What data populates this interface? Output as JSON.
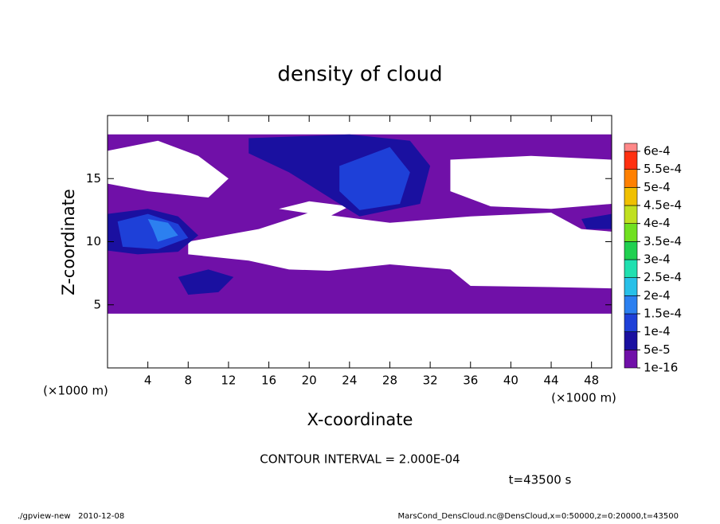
{
  "chart_data": {
    "type": "contour",
    "title": "density of cloud",
    "x_label": "X-coordinate",
    "y_label": "Z-coordinate",
    "x_unit": "(×1000 m)",
    "y_unit": "(×1000 m)",
    "annotation": "CONTOUR INTERVAL = 2.000E-04",
    "time": "t=43500 s",
    "footer_left": "./gpview-new   2010-12-08",
    "footer_right": "MarsCond_DensCloud.nc@DensCloud,x=0:50000,z=0:20000,t=43500",
    "xlim": [
      0,
      50
    ],
    "ylim": [
      0,
      20
    ],
    "xticks": [
      4,
      8,
      12,
      16,
      20,
      24,
      28,
      32,
      36,
      40,
      44,
      48
    ],
    "yticks": [
      5,
      10,
      15
    ],
    "levels": [
      {
        "value": 1e-16,
        "label": "1e-16"
      },
      {
        "value": 5e-05,
        "label": "5e-5"
      },
      {
        "value": 0.0001,
        "label": "1e-4"
      },
      {
        "value": 0.00015,
        "label": "1.5e-4"
      },
      {
        "value": 0.0002,
        "label": "2e-4"
      },
      {
        "value": 0.00025,
        "label": "2.5e-4"
      },
      {
        "value": 0.0003,
        "label": "3e-4"
      },
      {
        "value": 0.00035,
        "label": "3.5e-4"
      },
      {
        "value": 0.0004,
        "label": "4e-4"
      },
      {
        "value": 0.00045,
        "label": "4.5e-4"
      },
      {
        "value": 0.0005,
        "label": "5e-4"
      },
      {
        "value": 0.00055,
        "label": "5.5e-4"
      },
      {
        "value": 0.0006,
        "label": "6e-4"
      }
    ],
    "colors": [
      "#7010a8",
      "#1a10a0",
      "#1e40d8",
      "#2c80f0",
      "#28c0e8",
      "#20e0b0",
      "#20d050",
      "#70e020",
      "#c0e020",
      "#f0c000",
      "#ff8000",
      "#ff3010",
      "#ff8888"
    ],
    "regions": [
      {
        "level": 0,
        "points": [
          [
            0,
            18.5
          ],
          [
            50,
            18.5
          ],
          [
            50,
            4.3
          ],
          [
            0,
            4.3
          ]
        ]
      },
      {
        "level": 1,
        "points": [
          [
            14,
            18.2
          ],
          [
            24,
            18.5
          ],
          [
            30,
            18
          ],
          [
            32,
            16
          ],
          [
            31,
            13
          ],
          [
            25,
            12
          ],
          [
            22,
            13.5
          ],
          [
            18,
            15.5
          ],
          [
            14,
            17
          ]
        ]
      },
      {
        "level": 2,
        "points": [
          [
            23,
            16
          ],
          [
            28,
            17.5
          ],
          [
            30,
            15.5
          ],
          [
            29,
            13
          ],
          [
            25,
            12.5
          ],
          [
            23,
            14
          ]
        ]
      },
      {
        "level": 1,
        "points": [
          [
            0,
            12.2
          ],
          [
            4,
            12.6
          ],
          [
            7,
            12
          ],
          [
            9,
            10.5
          ],
          [
            7,
            9.2
          ],
          [
            3,
            9
          ],
          [
            0,
            9.3
          ]
        ]
      },
      {
        "level": 2,
        "points": [
          [
            1,
            11.6
          ],
          [
            4,
            12.2
          ],
          [
            7,
            11.4
          ],
          [
            8,
            10.3
          ],
          [
            5,
            9.4
          ],
          [
            1.5,
            9.6
          ]
        ]
      },
      {
        "level": 3,
        "points": [
          [
            4,
            11.8
          ],
          [
            6,
            11.5
          ],
          [
            7,
            10.5
          ],
          [
            5,
            10
          ],
          [
            4.5,
            11
          ]
        ]
      },
      {
        "level": 1,
        "points": [
          [
            7,
            7.2
          ],
          [
            10,
            7.8
          ],
          [
            12.5,
            7.2
          ],
          [
            11,
            6
          ],
          [
            8,
            5.8
          ]
        ]
      },
      {
        "level": 1,
        "points": [
          [
            47,
            11.8
          ],
          [
            50,
            12.2
          ],
          [
            50,
            11
          ],
          [
            47.5,
            11
          ]
        ]
      }
    ],
    "gaps": [
      [
        [
          0,
          17.2
        ],
        [
          5,
          18
        ],
        [
          9,
          16.8
        ],
        [
          12,
          15
        ],
        [
          10,
          13.5
        ],
        [
          4,
          14
        ],
        [
          0,
          14.6
        ]
      ],
      [
        [
          8,
          10
        ],
        [
          15,
          11
        ],
        [
          20,
          12.3
        ],
        [
          28,
          11.5
        ],
        [
          36,
          12
        ],
        [
          44,
          12.3
        ],
        [
          47,
          11
        ],
        [
          50,
          10.8
        ],
        [
          50,
          6.3
        ],
        [
          44,
          6.4
        ],
        [
          36,
          6.5
        ],
        [
          34,
          7.8
        ],
        [
          28,
          8.2
        ],
        [
          22,
          7.7
        ],
        [
          18,
          7.8
        ],
        [
          14,
          8.5
        ],
        [
          8,
          9
        ]
      ],
      [
        [
          34,
          16.5
        ],
        [
          42,
          16.8
        ],
        [
          50,
          16.5
        ],
        [
          50,
          13
        ],
        [
          44,
          12.6
        ],
        [
          38,
          12.8
        ],
        [
          34,
          14
        ]
      ],
      [
        [
          17,
          12.6
        ],
        [
          20,
          13.2
        ],
        [
          24,
          12.8
        ],
        [
          22,
          12
        ]
      ]
    ]
  }
}
